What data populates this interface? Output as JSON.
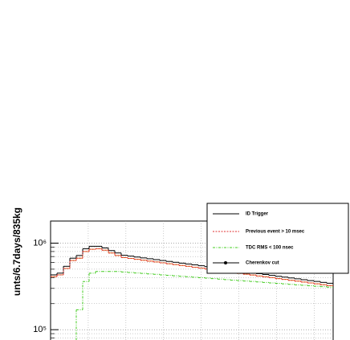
{
  "chart_data": {
    "type": "step",
    "y_label": "unts/6.7days/835kg",
    "categories": [
      null,
      null,
      null,
      null,
      null,
      null,
      null,
      null,
      null,
      null,
      null,
      null,
      null,
      null,
      null,
      null,
      null,
      null,
      null,
      null,
      null,
      null,
      null,
      null,
      null,
      null,
      null,
      null,
      null,
      null,
      null,
      null,
      null,
      null,
      null,
      null,
      null,
      null,
      null,
      null,
      null,
      null,
      null,
      null
    ],
    "ylim": [
      76000,
      1800000
    ],
    "log_y": true,
    "grid": true,
    "legend": "upper right",
    "yticks": [
      {
        "value": 100000,
        "label": "10⁵"
      },
      {
        "value": 1000000,
        "label": "10⁶"
      }
    ],
    "series": [
      {
        "name": "ID Trigger",
        "color": "#000000",
        "line": "solid",
        "marker": false,
        "values": [
          430000,
          450000,
          540000,
          670000,
          720000,
          860000,
          920000,
          920000,
          880000,
          820000,
          770000,
          724000,
          708000,
          691000,
          675000,
          660000,
          645000,
          630000,
          615000,
          601000,
          587000,
          574000,
          561000,
          548000,
          535000,
          523000,
          511000,
          499000,
          488000,
          476000,
          466000,
          455000,
          444000,
          434000,
          424000,
          414000,
          405000,
          396000,
          387000,
          378000,
          369000,
          361000,
          352000,
          344000
        ]
      },
      {
        "name": "Previous event > 10 msec",
        "color": "#e03030",
        "line": "dotted",
        "marker": false,
        "values": [
          410000,
          430000,
          510000,
          630000,
          670000,
          800000,
          850000,
          860000,
          830000,
          770000,
          720000,
          681000,
          666000,
          650000,
          635000,
          620000,
          606000,
          592000,
          578000,
          565000,
          552000,
          540000,
          527000,
          515000,
          503000,
          492000,
          480000,
          469000,
          459000,
          447000,
          438000,
          428000,
          417000,
          408000,
          399000,
          389000,
          381000,
          372000,
          364000,
          355000,
          347000,
          339000,
          331000,
          323000
        ]
      },
      {
        "name": "TDC RMS < 100 nsec",
        "color": "#44cc22",
        "line": "dashdot",
        "marker": false,
        "values": [
          null,
          null,
          null,
          null,
          170000,
          360000,
          450000,
          470000,
          470000,
          470000,
          470000,
          464000,
          458000,
          452000,
          447000,
          441000,
          436000,
          430000,
          425000,
          419000,
          414000,
          409000,
          404000,
          399000,
          394000,
          389000,
          384000,
          379000,
          374000,
          370000,
          365000,
          361000,
          356000,
          352000,
          347000,
          343000,
          339000,
          334000,
          330000,
          326000,
          322000,
          318000,
          314000,
          310000
        ]
      },
      {
        "name": "Cherenkov cut",
        "color": "#e08020",
        "line": "solid",
        "marker": true,
        "values": [
          410000,
          430000,
          510000,
          630000,
          670000,
          800000,
          850000,
          860000,
          830000,
          770000,
          720000,
          681000,
          666000,
          650000,
          635000,
          620000,
          606000,
          592000,
          578000,
          565000,
          552000,
          540000,
          527000,
          515000,
          503000,
          492000,
          480000,
          469000,
          459000,
          447000,
          438000,
          428000,
          417000,
          408000,
          399000,
          389000,
          381000,
          372000,
          364000,
          355000,
          347000,
          339000,
          331000,
          323000
        ]
      }
    ]
  }
}
